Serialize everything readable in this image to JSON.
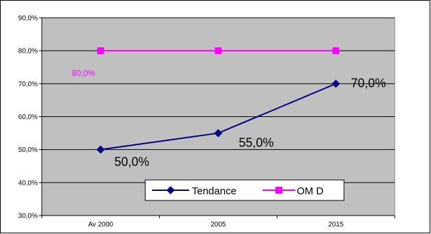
{
  "chart_data": {
    "type": "line",
    "categories": [
      "Av 2000",
      "2005",
      "2015"
    ],
    "ylim": [
      0.3,
      0.9
    ],
    "yticks": [
      "30,0%",
      "40,0%",
      "50,0%",
      "60,0%",
      "70,0%",
      "80,0%",
      "90,0%"
    ],
    "grid": true,
    "legend_position": "bottom-right",
    "plot_background": "#c0c0c0",
    "series": [
      {
        "name": "Tendance",
        "values": [
          0.5,
          0.55,
          0.7
        ],
        "labels": [
          "50,0%",
          "55,0%",
          "70,0%"
        ],
        "color": "#000080",
        "marker": "diamond"
      },
      {
        "name": "OM D",
        "values": [
          0.8,
          0.8,
          0.8
        ],
        "labels": [
          "80,0%"
        ],
        "color": "#ff00ff",
        "marker": "square"
      }
    ]
  }
}
